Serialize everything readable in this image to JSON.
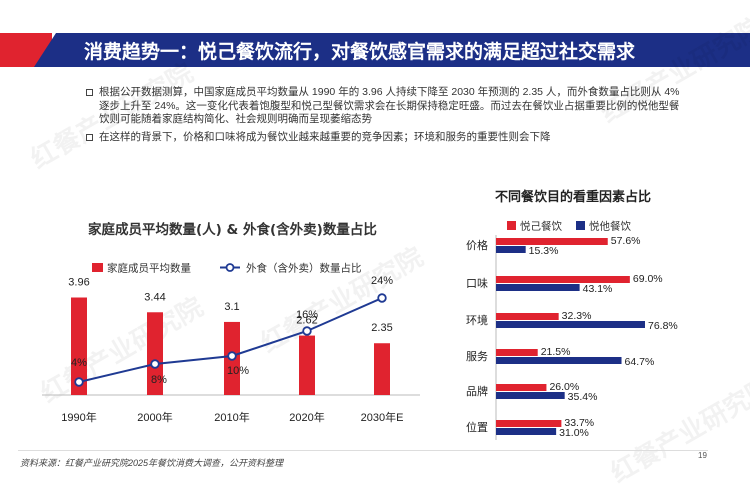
{
  "header": {
    "title": "消费趋势一：悦己餐饮流行，对餐饮感官需求的满足超过社交需求"
  },
  "bullets": [
    "根据公开数据测算，中国家庭成员平均数量从 1990 年的 3.96 人持续下降至 2030 年预测的 2.35 人，而外食数量占比则从 4% 逐步上升至 24%。这一变化代表着饱腹型和悦己型餐饮需求会在长期保持稳定旺盛。而过去在餐饮业占据重要比例的悦他型餐饮则可能随着家庭结构简化、社会规则明确而呈现萎缩态势",
    "在这样的背景下，价格和口味将成为餐饮业越来越重要的竞争因素；环境和服务的重要性则会下降"
  ],
  "footer": {
    "source": "资料来源：红餐产业研究院2025年餐饮消费大调查，公开资料整理",
    "page": "19"
  },
  "watermark": "红餐产业研究院",
  "colors": {
    "red": "#e0232f",
    "navy": "#1c2f86",
    "line": "#1f3a93"
  },
  "chart_data": [
    {
      "type": "bar",
      "title": "家庭成员平均数量(人) & 外食(含外卖)数量占比",
      "categories": [
        "1990年",
        "2000年",
        "2010年",
        "2020年",
        "2030年E"
      ],
      "series": [
        {
          "name": "家庭成员平均数量",
          "type": "bar",
          "values": [
            3.96,
            3.44,
            3.1,
            2.62,
            2.35
          ],
          "labels": [
            "3.96",
            "3.44",
            "3.1",
            "2.62",
            "2.35"
          ]
        },
        {
          "name": "外食（含外卖）数量占比",
          "type": "line",
          "values": [
            4,
            8,
            10,
            16,
            24
          ],
          "labels": [
            "4%",
            "8%",
            "10%",
            "16%",
            "24%"
          ]
        }
      ],
      "ylim_bar": [
        0,
        4.4
      ],
      "ylim_line": [
        0,
        26
      ],
      "legend": "top"
    },
    {
      "type": "bar",
      "orientation": "horizontal",
      "title": "不同餐饮目的看重因素占比",
      "categories": [
        "价格",
        "口味",
        "环境",
        "服务",
        "品牌",
        "位置"
      ],
      "series": [
        {
          "name": "悦己餐饮",
          "values": [
            57.6,
            69.0,
            32.3,
            21.5,
            26.0,
            33.7
          ],
          "labels": [
            "57.6%",
            "69.0%",
            "32.3%",
            "21.5%",
            "26.0%",
            "33.7%"
          ]
        },
        {
          "name": "悦他餐饮",
          "values": [
            15.3,
            43.1,
            76.8,
            64.7,
            35.4,
            31.0
          ],
          "labels": [
            "15.3%",
            "43.1%",
            "76.8%",
            "64.7%",
            "35.4%",
            "31.0%"
          ]
        }
      ],
      "xlim": [
        0,
        100
      ],
      "legend": "top-left"
    }
  ]
}
